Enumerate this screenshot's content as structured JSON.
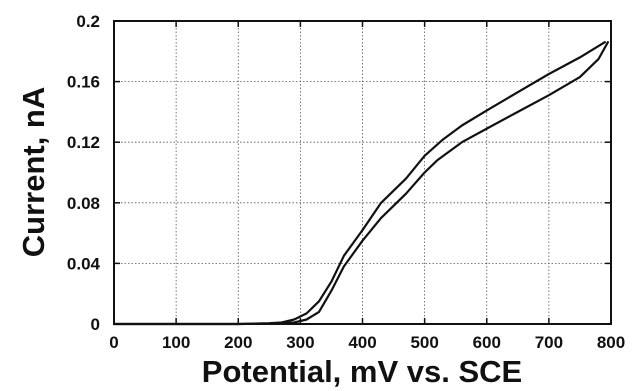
{
  "chart_data": {
    "type": "line",
    "title": "",
    "xlabel": "Potential, mV vs. SCE",
    "ylabel": "Current, nA",
    "xlim": [
      0,
      800
    ],
    "ylim": [
      0,
      0.2
    ],
    "x_ticks": [
      0,
      100,
      200,
      300,
      400,
      500,
      600,
      700,
      800
    ],
    "x_tick_labels": [
      "0",
      "100",
      "200",
      "300",
      "400",
      "500",
      "600",
      "700",
      "800"
    ],
    "y_ticks": [
      0,
      0.04,
      0.08,
      0.12,
      0.16,
      0.2
    ],
    "y_tick_labels": [
      "0",
      "0.04",
      "0.08",
      "0.12",
      "0.16",
      "0.2"
    ],
    "grid": true,
    "legend": "none",
    "series": [
      {
        "x": [
          200,
          250,
          270,
          290,
          310,
          330,
          350,
          370,
          400,
          430,
          470,
          500,
          530,
          560,
          600,
          650,
          700,
          750,
          790
        ],
        "y": [
          0,
          0.0005,
          0.001,
          0.003,
          0.007,
          0.015,
          0.028,
          0.045,
          0.062,
          0.08,
          0.096,
          0.111,
          0.122,
          0.131,
          0.141,
          0.153,
          0.165,
          0.176,
          0.186
        ]
      },
      {
        "x": [
          200,
          270,
          290,
          310,
          330,
          350,
          370,
          400,
          430,
          470,
          500,
          520,
          560,
          600,
          650,
          700,
          750,
          780,
          795
        ],
        "y": [
          0,
          0.0003,
          0.001,
          0.003,
          0.008,
          0.022,
          0.038,
          0.055,
          0.07,
          0.086,
          0.1,
          0.108,
          0.12,
          0.129,
          0.14,
          0.151,
          0.163,
          0.175,
          0.186
        ]
      }
    ]
  }
}
